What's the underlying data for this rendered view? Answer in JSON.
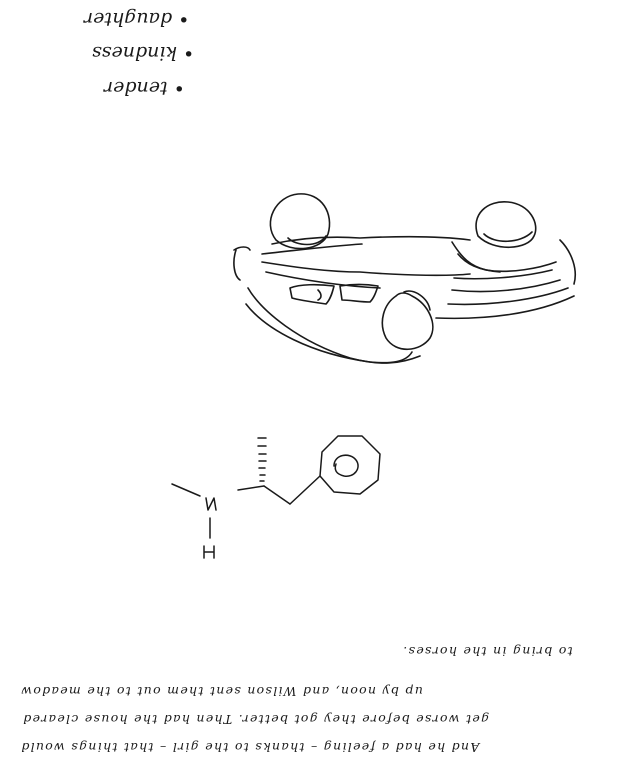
{
  "notes": {
    "bullets": [
      "• tender",
      "• kindness",
      "• daughter"
    ],
    "paragraph_lines": [
      "And he had a feeling – thanks to the girl – that things would",
      "get worse before they got better. Then had the house cleared",
      "up by noon, and Wilson sent them out to the meadow",
      "to bring in the horses."
    ]
  },
  "colors": {
    "ink": "#1a1a1a",
    "paper": "#ffffff"
  }
}
